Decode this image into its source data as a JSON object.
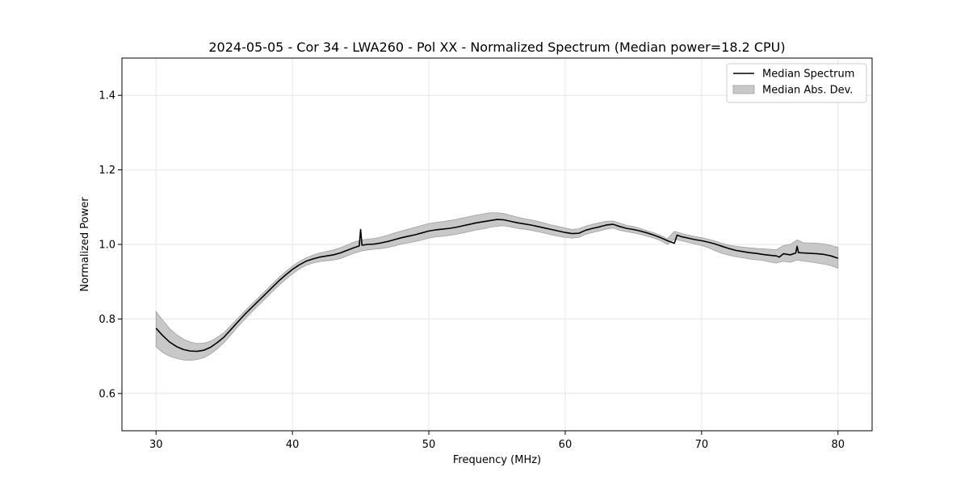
{
  "chart_data": {
    "type": "line",
    "title": "2024-05-05 - Cor 34 - LWA260 - Pol XX - Normalized Spectrum (Median power=18.2 CPU)",
    "xlabel": "Frequency (MHz)",
    "ylabel": "Normalized Power",
    "xlim": [
      27.5,
      82.5
    ],
    "ylim": [
      0.5,
      1.5
    ],
    "x_ticks": [
      30,
      40,
      50,
      60,
      70,
      80
    ],
    "x_tick_labels": [
      "30",
      "40",
      "50",
      "60",
      "70",
      "80"
    ],
    "y_ticks": [
      0.6,
      0.8,
      1.0,
      1.2,
      1.4
    ],
    "y_tick_labels": [
      "0.6",
      "0.8",
      "1.0",
      "1.2",
      "1.4"
    ],
    "grid": true,
    "legend_position": "top-right",
    "legend": [
      "Median Spectrum",
      "Median Abs. Dev."
    ],
    "colors": {
      "line": "#000000",
      "band": "#c8c8c8",
      "band_edge": "#a0a0a0",
      "grid": "#e6e6e6"
    },
    "series": [
      {
        "name": "Median Spectrum",
        "kind": "line",
        "x": [
          30,
          30.5,
          31,
          31.5,
          32,
          32.5,
          33,
          33.5,
          34,
          34.5,
          35,
          35.5,
          36,
          36.5,
          37,
          37.5,
          38,
          38.5,
          39,
          39.5,
          40,
          40.5,
          41,
          41.5,
          42,
          42.5,
          43,
          43.5,
          44,
          44.5,
          44.9,
          45.0,
          45.1,
          45.5,
          46,
          46.5,
          47,
          47.5,
          48,
          48.5,
          49,
          49.5,
          50,
          50.5,
          51,
          51.5,
          52,
          52.5,
          53,
          53.5,
          54,
          54.5,
          55,
          55.5,
          56,
          56.5,
          57,
          57.5,
          58,
          58.5,
          59,
          59.5,
          60,
          60.5,
          61,
          61.5,
          62,
          62.5,
          63,
          63.5,
          64,
          64.5,
          65,
          65.5,
          66,
          66.5,
          67,
          67.5,
          68,
          68.2,
          68.5,
          69,
          69.5,
          70,
          70.5,
          71,
          71.5,
          72,
          72.5,
          73,
          73.5,
          74,
          74.5,
          75,
          75.5,
          75.7,
          76,
          76.5,
          76.9,
          77.0,
          77.1,
          77.5,
          78,
          78.5,
          79,
          79.5,
          80
        ],
        "values": [
          0.775,
          0.755,
          0.738,
          0.726,
          0.718,
          0.714,
          0.713,
          0.716,
          0.724,
          0.737,
          0.752,
          0.772,
          0.792,
          0.812,
          0.83,
          0.848,
          0.866,
          0.884,
          0.902,
          0.918,
          0.933,
          0.945,
          0.955,
          0.961,
          0.966,
          0.969,
          0.972,
          0.977,
          0.984,
          0.991,
          0.996,
          1.04,
          0.998,
          1.0,
          1.001,
          1.004,
          1.008,
          1.013,
          1.018,
          1.022,
          1.026,
          1.031,
          1.036,
          1.039,
          1.041,
          1.043,
          1.046,
          1.05,
          1.054,
          1.058,
          1.061,
          1.064,
          1.067,
          1.066,
          1.062,
          1.058,
          1.055,
          1.052,
          1.048,
          1.044,
          1.04,
          1.036,
          1.032,
          1.029,
          1.03,
          1.038,
          1.043,
          1.047,
          1.052,
          1.054,
          1.048,
          1.043,
          1.04,
          1.036,
          1.031,
          1.025,
          1.018,
          1.01,
          1.003,
          1.025,
          1.021,
          1.017,
          1.013,
          1.01,
          1.006,
          1.001,
          0.995,
          0.989,
          0.984,
          0.981,
          0.978,
          0.976,
          0.973,
          0.971,
          0.969,
          0.966,
          0.975,
          0.972,
          0.977,
          0.995,
          0.978,
          0.977,
          0.976,
          0.975,
          0.973,
          0.969,
          0.963
        ]
      },
      {
        "name": "Median Abs. Dev.",
        "kind": "band",
        "x": [
          30,
          30.5,
          31,
          31.5,
          32,
          32.5,
          33,
          33.5,
          34,
          34.5,
          35,
          35.5,
          36,
          36.5,
          37,
          37.5,
          38,
          38.5,
          39,
          39.5,
          40,
          40.5,
          41,
          41.5,
          42,
          42.5,
          43,
          43.5,
          44,
          44.5,
          45,
          45.5,
          46,
          46.5,
          47,
          47.5,
          48,
          48.5,
          49,
          49.5,
          50,
          50.5,
          51,
          51.5,
          52,
          52.5,
          53,
          53.5,
          54,
          54.5,
          55,
          55.5,
          56,
          56.5,
          57,
          57.5,
          58,
          58.5,
          59,
          59.5,
          60,
          60.5,
          61,
          61.5,
          62,
          62.5,
          63,
          63.5,
          64,
          64.5,
          65,
          65.5,
          66,
          66.5,
          67,
          67.5,
          68,
          68.5,
          69,
          69.5,
          70,
          70.5,
          71,
          71.5,
          72,
          72.5,
          73,
          73.5,
          74,
          74.5,
          75,
          75.5,
          76,
          76.5,
          77,
          77.5,
          78,
          78.5,
          79,
          79.5,
          80
        ],
        "upper": [
          0.82,
          0.796,
          0.774,
          0.758,
          0.746,
          0.738,
          0.734,
          0.735,
          0.74,
          0.751,
          0.764,
          0.783,
          0.802,
          0.821,
          0.839,
          0.857,
          0.875,
          0.893,
          0.911,
          0.927,
          0.942,
          0.954,
          0.964,
          0.971,
          0.977,
          0.981,
          0.985,
          0.991,
          0.998,
          1.006,
          1.012,
          1.014,
          1.016,
          1.02,
          1.025,
          1.031,
          1.036,
          1.041,
          1.046,
          1.051,
          1.056,
          1.059,
          1.061,
          1.064,
          1.067,
          1.071,
          1.075,
          1.079,
          1.082,
          1.085,
          1.085,
          1.083,
          1.078,
          1.073,
          1.069,
          1.066,
          1.062,
          1.057,
          1.052,
          1.048,
          1.044,
          1.04,
          1.042,
          1.049,
          1.054,
          1.058,
          1.062,
          1.063,
          1.057,
          1.051,
          1.048,
          1.043,
          1.037,
          1.031,
          1.024,
          1.015,
          1.035,
          1.03,
          1.025,
          1.021,
          1.018,
          1.014,
          1.009,
          1.003,
          0.998,
          0.995,
          0.993,
          0.991,
          0.989,
          0.988,
          0.987,
          0.986,
          0.997,
          1.0,
          1.012,
          1.004,
          1.004,
          1.003,
          1.001,
          0.997,
          0.992
        ],
        "lower": [
          0.725,
          0.71,
          0.7,
          0.694,
          0.69,
          0.689,
          0.691,
          0.696,
          0.706,
          0.72,
          0.737,
          0.758,
          0.779,
          0.799,
          0.818,
          0.836,
          0.854,
          0.872,
          0.89,
          0.906,
          0.921,
          0.934,
          0.944,
          0.95,
          0.954,
          0.956,
          0.958,
          0.962,
          0.969,
          0.976,
          0.982,
          0.985,
          0.987,
          0.989,
          0.992,
          0.996,
          1.001,
          1.004,
          1.008,
          1.012,
          1.017,
          1.02,
          1.022,
          1.024,
          1.027,
          1.031,
          1.035,
          1.039,
          1.042,
          1.046,
          1.049,
          1.05,
          1.047,
          1.043,
          1.041,
          1.038,
          1.034,
          1.03,
          1.026,
          1.022,
          1.019,
          1.017,
          1.019,
          1.027,
          1.032,
          1.036,
          1.041,
          1.044,
          1.038,
          1.034,
          1.031,
          1.027,
          1.022,
          1.017,
          1.01,
          1.0,
          1.014,
          1.01,
          1.006,
          1.001,
          0.997,
          0.991,
          0.983,
          0.976,
          0.971,
          0.967,
          0.964,
          0.961,
          0.959,
          0.957,
          0.953,
          0.95,
          0.955,
          0.952,
          0.958,
          0.955,
          0.953,
          0.95,
          0.947,
          0.943,
          0.936
        ]
      }
    ]
  }
}
